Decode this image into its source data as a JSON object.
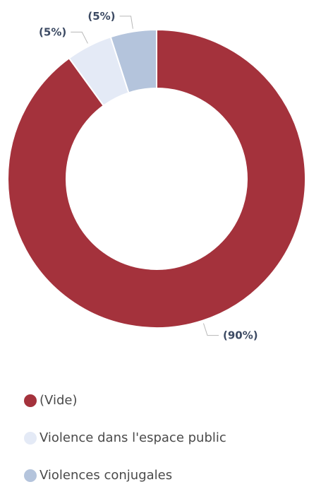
{
  "chart_data": {
    "type": "pie",
    "categories": [
      "(Vide)",
      "Violence dans l'espace public",
      "Violences conjugales"
    ],
    "values": [
      90,
      5,
      5
    ],
    "data_labels": [
      "(90%)",
      "(5%)",
      "(5%)"
    ],
    "colors": [
      "#a4323c",
      "#e4eaf6",
      "#b4c4dc"
    ],
    "label_color": "#3c4a63",
    "donut": true,
    "legend_position": "bottom-left"
  },
  "legend": {
    "items": [
      {
        "label": "(Vide)",
        "color": "#a4323c"
      },
      {
        "label": "Violence dans l'espace public",
        "color": "#e4eaf6"
      },
      {
        "label": "Violences conjugales",
        "color": "#b4c4dc"
      }
    ]
  }
}
